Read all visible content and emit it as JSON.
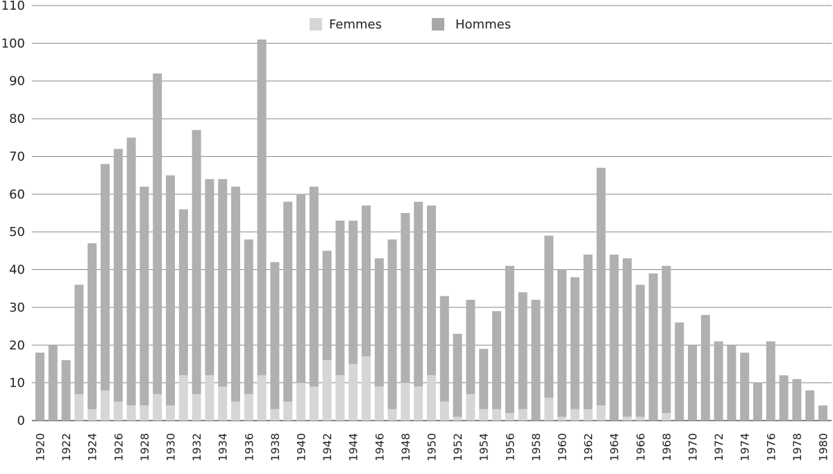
{
  "chart_data": {
    "type": "bar",
    "stacked": true,
    "title": "",
    "xlabel": "",
    "ylabel": "",
    "ylim": [
      0,
      110
    ],
    "yticks": [
      0,
      10,
      20,
      30,
      40,
      50,
      60,
      70,
      80,
      90,
      100,
      110
    ],
    "grid": true,
    "legend_position": "top-center",
    "categories": [
      "1920",
      "1921",
      "1922",
      "1923",
      "1924",
      "1925",
      "1926",
      "1927",
      "1928",
      "1929",
      "1930",
      "1931",
      "1932",
      "1933",
      "1934",
      "1935",
      "1936",
      "1937",
      "1938",
      "1939",
      "1940",
      "1941",
      "1942",
      "1943",
      "1944",
      "1945",
      "1946",
      "1947",
      "1948",
      "1949",
      "1950",
      "1951",
      "1952",
      "1953",
      "1954",
      "1955",
      "1956",
      "1957",
      "1958",
      "1959",
      "1960",
      "1961",
      "1962",
      "1963",
      "1964",
      "1965",
      "1966",
      "1967",
      "1968",
      "1969",
      "1970",
      "1971",
      "1972",
      "1973",
      "1974",
      "1975",
      "1976",
      "1977",
      "1978",
      "1979",
      "1980"
    ],
    "xtick_labels": [
      "1920",
      "1922",
      "1924",
      "1926",
      "1928",
      "1930",
      "1932",
      "1934",
      "1936",
      "1938",
      "1940",
      "1942",
      "1944",
      "1946",
      "1948",
      "1950",
      "1952",
      "1954",
      "1956",
      "1958",
      "1960",
      "1962",
      "1964",
      "1966",
      "1968",
      "1970",
      "1972",
      "1974",
      "1976",
      "1978",
      "1980"
    ],
    "series": [
      {
        "name": "Femmes",
        "color": "#d6d6d6",
        "values": [
          0,
          0,
          0,
          7,
          3,
          8,
          5,
          4,
          4,
          7,
          4,
          12,
          7,
          12,
          9,
          5,
          7,
          12,
          3,
          5,
          10,
          9,
          16,
          12,
          15,
          17,
          9,
          3,
          10,
          9,
          12,
          5,
          1,
          7,
          3,
          3,
          2,
          3,
          0,
          6,
          1,
          3,
          3,
          4,
          0,
          1,
          1,
          0,
          2,
          0,
          0,
          0,
          0,
          0,
          0,
          0,
          0,
          0,
          0,
          0,
          0
        ]
      },
      {
        "name": "Hommes",
        "color": "#b0b0b0",
        "values": [
          18,
          20,
          16,
          29,
          44,
          60,
          67,
          71,
          58,
          85,
          61,
          44,
          70,
          52,
          55,
          57,
          41,
          89,
          39,
          53,
          50,
          53,
          29,
          41,
          38,
          40,
          34,
          45,
          45,
          49,
          45,
          28,
          22,
          25,
          16,
          26,
          39,
          31,
          32,
          43,
          39,
          35,
          41,
          63,
          44,
          42,
          35,
          39,
          39,
          26,
          20,
          28,
          21,
          20,
          18,
          10,
          21,
          12,
          11,
          8,
          4
        ]
      }
    ]
  },
  "legend": {
    "items": [
      {
        "label": "Femmes",
        "color": "#d6d6d6"
      },
      {
        "label": "Hommes",
        "color": "#a9a7a5"
      }
    ]
  }
}
